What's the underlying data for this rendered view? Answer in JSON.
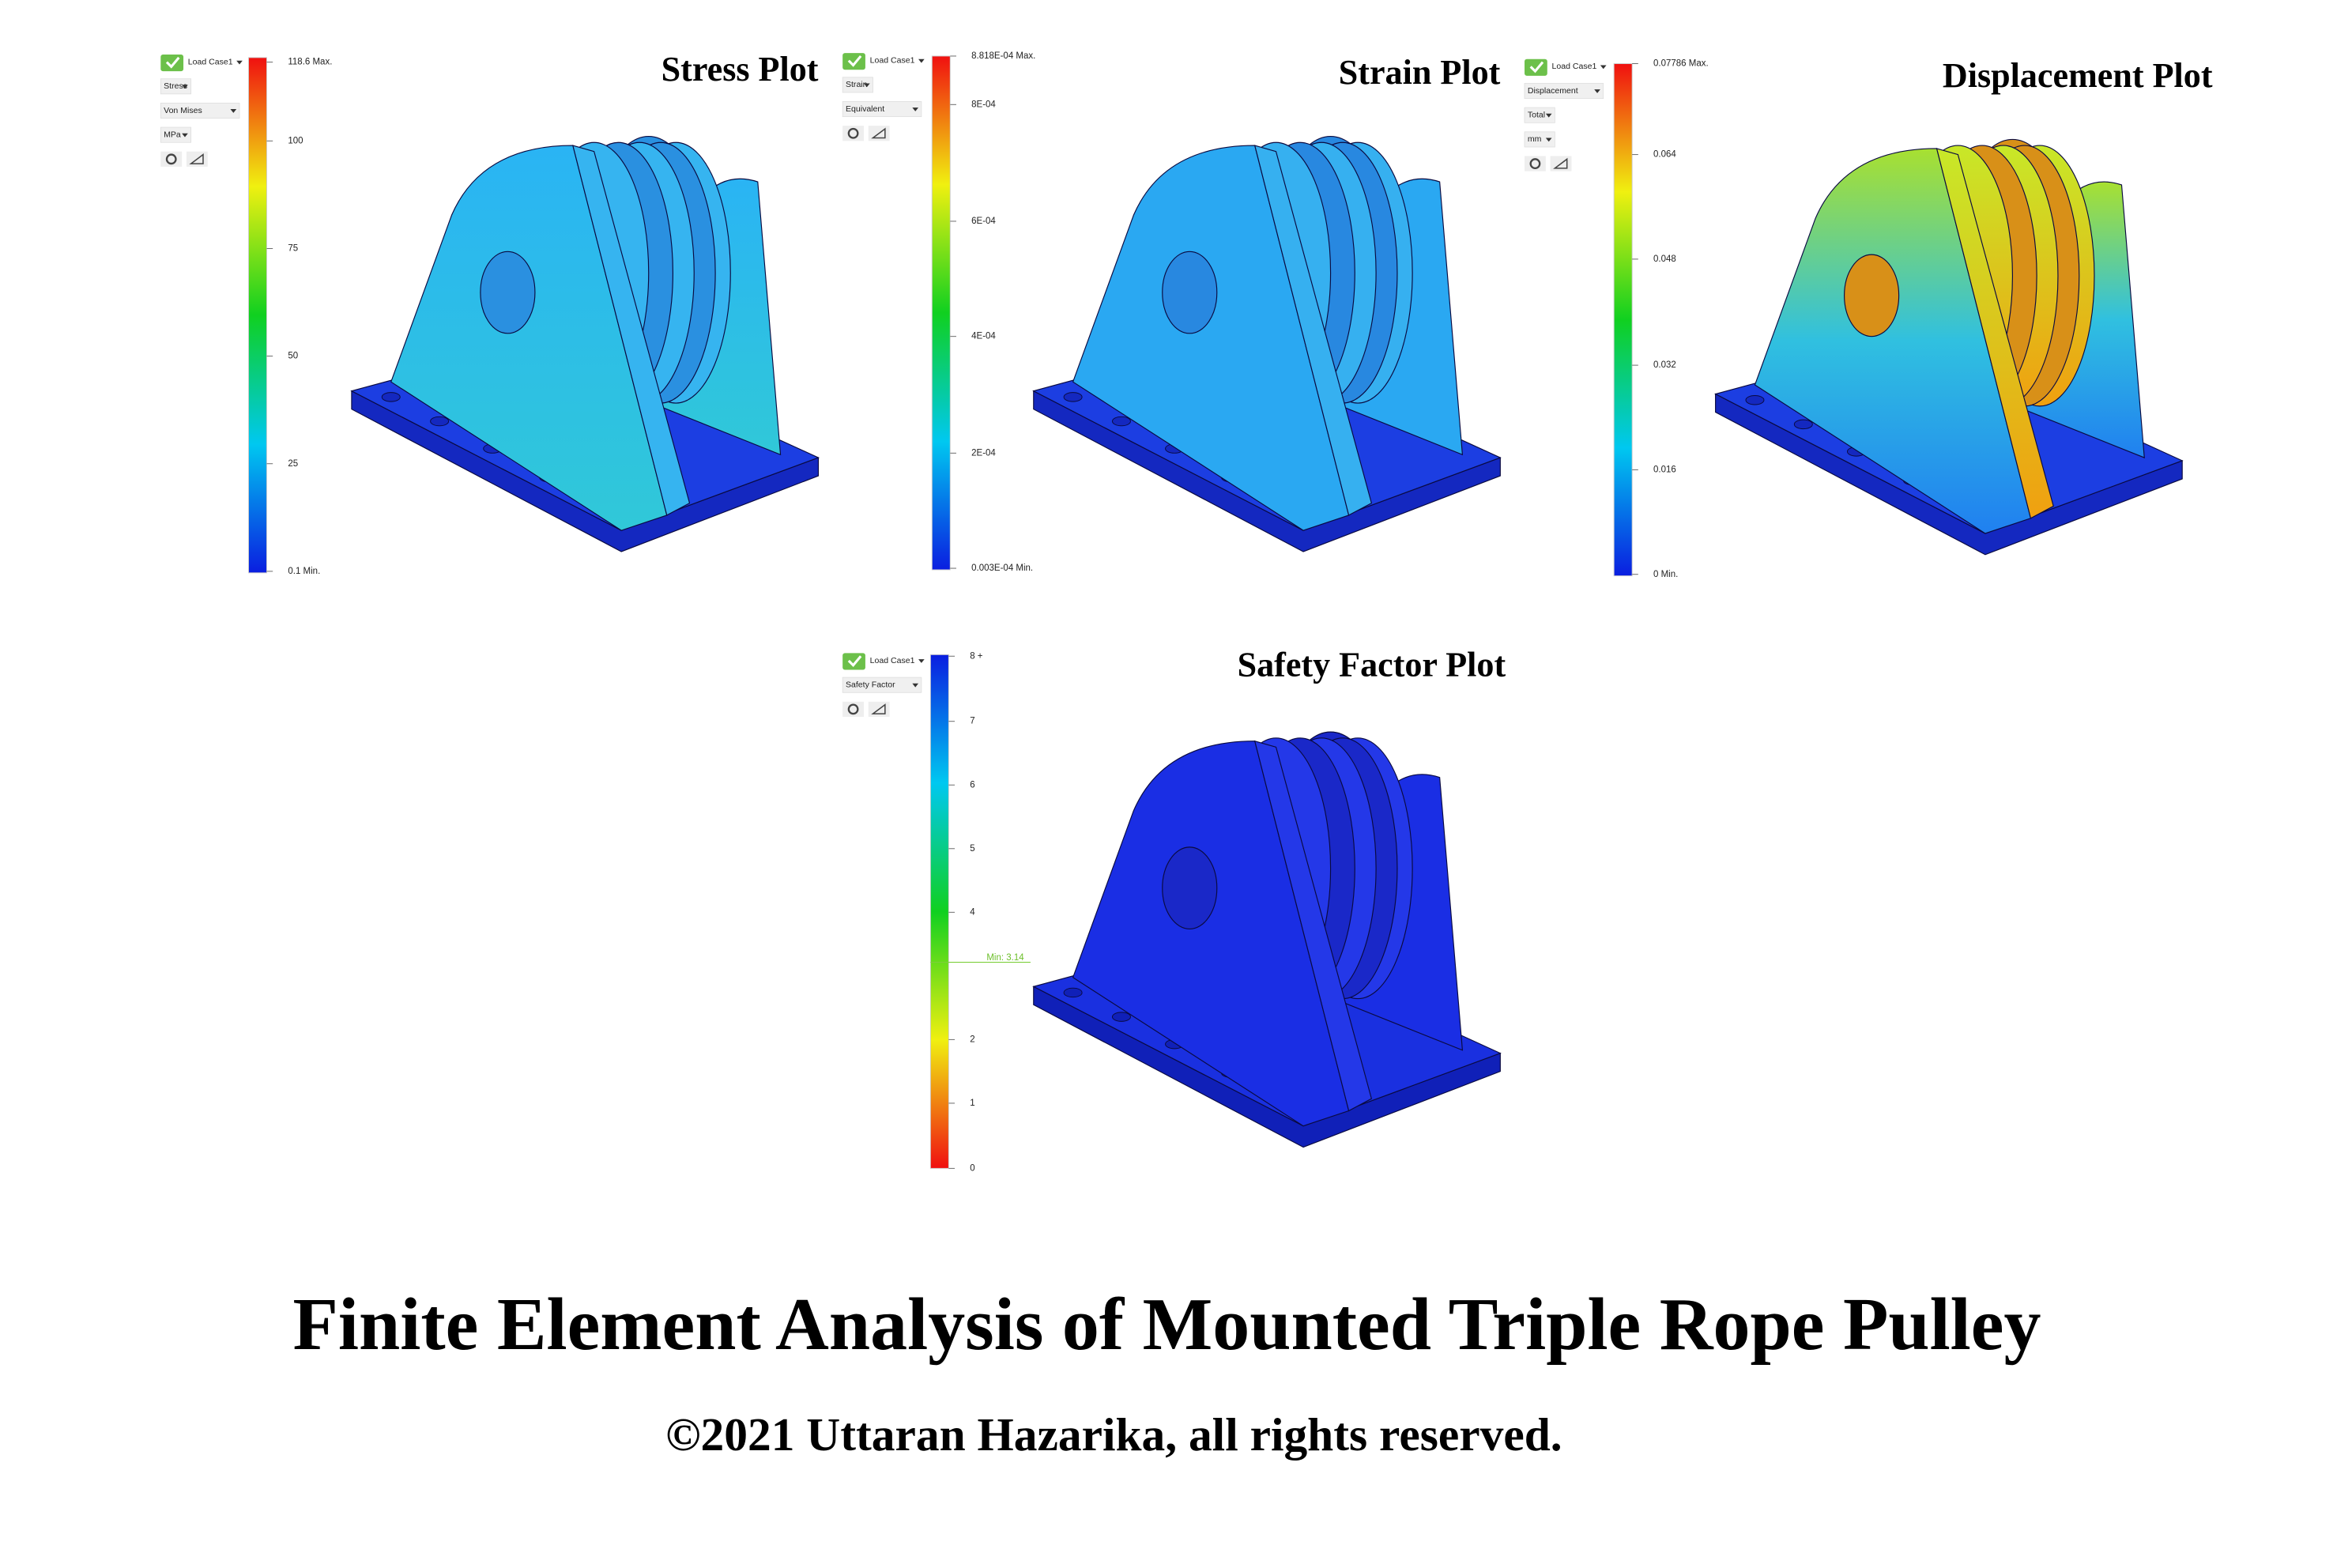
{
  "panels": [
    {
      "title": "Stress Plot",
      "toolbar": [
        "Load Case1",
        "Stress",
        "Von Mises",
        "MPa"
      ],
      "legend": [
        "118.6 Max.",
        "100",
        "75",
        "50",
        "25",
        "0.1 Min."
      ]
    },
    {
      "title": "Strain Plot",
      "toolbar": [
        "Load Case1",
        "Strain",
        "Equivalent"
      ],
      "legend": [
        "8.818E-04 Max.",
        "8E-04",
        "6E-04",
        "4E-04",
        "2E-04",
        "0.003E-04 Min."
      ]
    },
    {
      "title": "Displacement Plot",
      "toolbar": [
        "Load Case1",
        "Displacement",
        "Total",
        "mm"
      ],
      "legend": [
        "0.07786 Max.",
        "0.064",
        "0.048",
        "0.032",
        "0.016",
        "0 Min."
      ]
    },
    {
      "title": "Safety Factor Plot",
      "toolbar": [
        "Load Case1",
        "Safety Factor"
      ],
      "legend": [
        "8 +",
        "7",
        "6",
        "5",
        "4",
        "2",
        "1",
        "0"
      ],
      "min_marker": "Min: 3.14"
    }
  ],
  "footer": {
    "title": "Finite Element Analysis of Mounted Triple Rope Pulley",
    "copyright": "©2021 Uttaran Hazarika, all rights reserved."
  }
}
